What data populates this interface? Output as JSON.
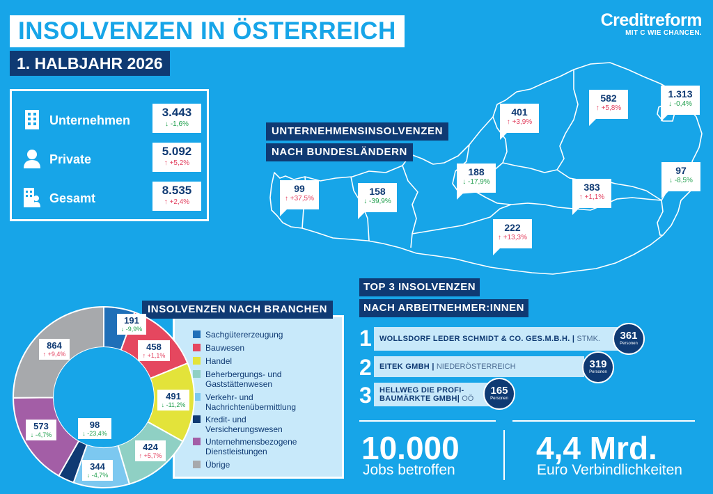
{
  "header": {
    "title": "INSOLVENZEN IN ÖSTERREICH",
    "subtitle": "1. HALBJAHR 2026"
  },
  "logo": {
    "name": "Creditreform",
    "claim": "MIT C WIE CHANCEN."
  },
  "summary": [
    {
      "label": "Unternehmen",
      "value": "3.443",
      "change": "-1,6%",
      "dir": "down",
      "icon": "building-icon"
    },
    {
      "label": "Private",
      "value": "5.092",
      "change": "+5,2%",
      "dir": "up",
      "icon": "person-icon"
    },
    {
      "label": "Gesamt",
      "value": "8.535",
      "change": "+2,4%",
      "dir": "up",
      "icon": "building-person-icon"
    }
  ],
  "map": {
    "heading_line1": "UNTERNEHMENSINSOLVENZEN",
    "heading_line2": "NACH BUNDESLÄNDERN",
    "regions": [
      {
        "value": "99",
        "change": "+37,5%",
        "dir": "up"
      },
      {
        "value": "158",
        "change": "-39,9%",
        "dir": "down"
      },
      {
        "value": "188",
        "change": "-17,9%",
        "dir": "down"
      },
      {
        "value": "401",
        "change": "+3,9%",
        "dir": "up"
      },
      {
        "value": "582",
        "change": "+5,8%",
        "dir": "up"
      },
      {
        "value": "1.313",
        "change": "-0,4%",
        "dir": "down"
      },
      {
        "value": "97",
        "change": "-8,5%",
        "dir": "down"
      },
      {
        "value": "383",
        "change": "+1,1%",
        "dir": "up"
      },
      {
        "value": "222",
        "change": "+13,3%",
        "dir": "up"
      }
    ]
  },
  "branches": {
    "heading": "INSOLVENZEN NACH BRANCHEN",
    "items": [
      {
        "label": "Sachgütererzeugung",
        "value": "191",
        "num": 191,
        "change": "-9,9%",
        "dir": "down",
        "color": "#1f6fb8"
      },
      {
        "label": "Bauwesen",
        "value": "458",
        "num": 458,
        "change": "+1,1%",
        "dir": "up",
        "color": "#e5475f"
      },
      {
        "label": "Handel",
        "value": "491",
        "num": 491,
        "change": "-11,2%",
        "dir": "down",
        "color": "#e3e33a"
      },
      {
        "label": "Beherbergungs- und Gaststättenwesen",
        "value": "424",
        "num": 424,
        "change": "+5,7%",
        "dir": "up",
        "color": "#8fd0c4"
      },
      {
        "label": "Verkehr- und Nachrichtenübermittlung",
        "value": "344",
        "num": 344,
        "change": "-4,7%",
        "dir": "down",
        "color": "#7cc8f0"
      },
      {
        "label": "Kredit- und Versicherungswesen",
        "value": "98",
        "num": 98,
        "change": "-23,4%",
        "dir": "down",
        "color": "#0f3a73"
      },
      {
        "label": "Unternehmensbezogene Dienstleistungen",
        "value": "573",
        "num": 573,
        "change": "-4,7%",
        "dir": "down",
        "color": "#a35ea6"
      },
      {
        "label": "Übrige",
        "value": "864",
        "num": 864,
        "change": "+9,4%",
        "dir": "up",
        "color": "#a7a9ac"
      }
    ]
  },
  "top3": {
    "heading_line1": "TOP 3 INSOLVENZEN",
    "heading_line2": "NACH ARBEITNEHMER:INNEN",
    "items": [
      {
        "rank": "1",
        "name": "WOLLSDORF LEDER SCHMIDT & CO. GES.M.B.H. |",
        "region": "STMK.",
        "count": "361",
        "unit": "Personen"
      },
      {
        "rank": "2",
        "name": "EITEK GMBH |",
        "region": "NIEDERÖSTERREICH",
        "count": "319",
        "unit": "Personen"
      },
      {
        "rank": "3",
        "name": "HELLWEG DIE PROFI-BAUMÄRKTE GMBH|",
        "region": "OÖ",
        "count": "165",
        "unit": "Personen"
      }
    ]
  },
  "stats": [
    {
      "value": "10.000",
      "label": "Jobs betroffen"
    },
    {
      "value": "4,4 Mrd.",
      "label": "Euro Verbindlichkeiten"
    }
  ]
}
